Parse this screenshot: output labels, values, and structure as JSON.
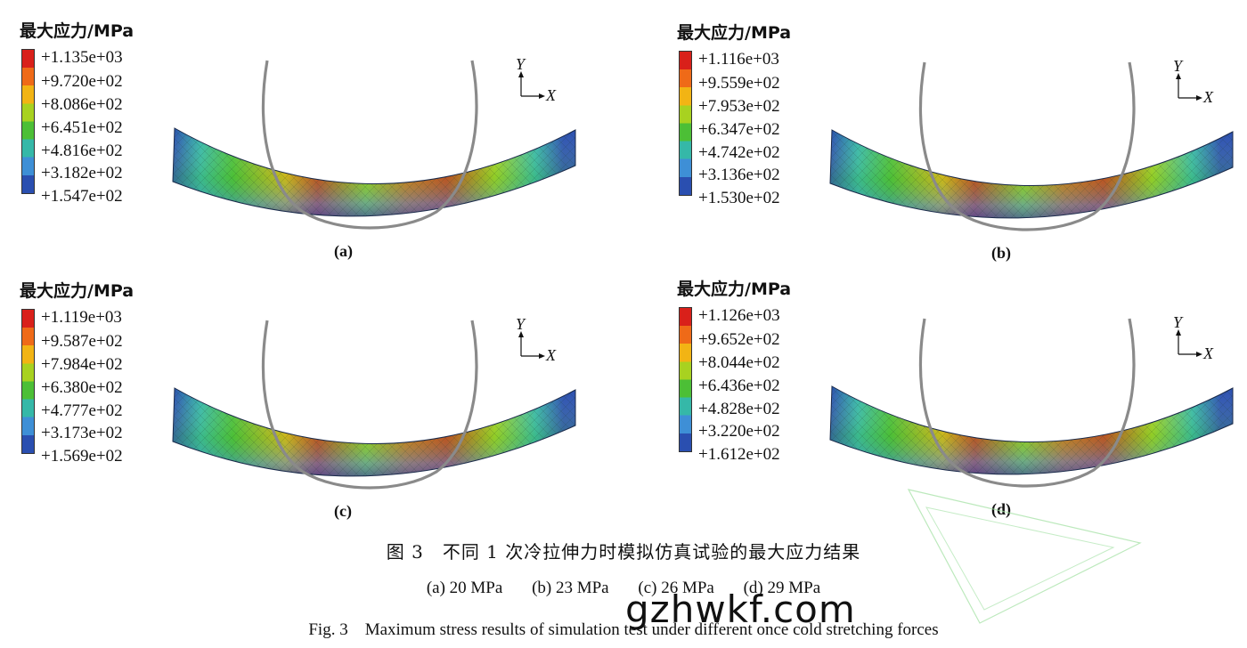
{
  "panels": [
    {
      "label": "(a)",
      "legend_title": "最大应力/MPa",
      "ticks": [
        "+1.135e+03",
        "+9.720e+02",
        "+8.086e+02",
        "+6.451e+02",
        "+4.816e+02",
        "+3.182e+02",
        "+1.547e+02"
      ],
      "axis_y": "Y",
      "axis_x": "X"
    },
    {
      "label": "(b)",
      "legend_title": "最大应力/MPa",
      "ticks": [
        "+1.116e+03",
        "+9.559e+02",
        "+7.953e+02",
        "+6.347e+02",
        "+4.742e+02",
        "+3.136e+02",
        "+1.530e+02"
      ],
      "axis_y": "Y",
      "axis_x": "X"
    },
    {
      "label": "(c)",
      "legend_title": "最大应力/MPa",
      "ticks": [
        "+1.119e+03",
        "+9.587e+02",
        "+7.984e+02",
        "+6.380e+02",
        "+4.777e+02",
        "+3.173e+02",
        "+1.569e+02"
      ],
      "axis_y": "Y",
      "axis_x": "X"
    },
    {
      "label": "(d)",
      "legend_title": "最大应力/MPa",
      "ticks": [
        "+1.126e+03",
        "+9.652e+02",
        "+8.044e+02",
        "+6.436e+02",
        "+4.828e+02",
        "+3.220e+02",
        "+1.612e+02"
      ],
      "axis_y": "Y",
      "axis_x": "X"
    }
  ],
  "caption": {
    "cn": "图 3　不同 1 次冷拉伸力时模拟仿真试验的最大应力结果",
    "sub": [
      "(a) 20 MPa",
      "(b) 23 MPa",
      "(c) 26 MPa",
      "(d) 29 MPa"
    ],
    "en": "Fig. 3　Maximum stress results of simulation test under different once cold stretching forces"
  },
  "watermark": "gzhwkf.com",
  "colors": {
    "red": "#d9201a",
    "orange": "#ef6a18",
    "yellow": "#f2b414",
    "lime": "#a8d220",
    "green": "#4cbf36",
    "cyan": "#35b8a8",
    "blue": "#3e8fd6",
    "navy": "#2a4fb0"
  }
}
